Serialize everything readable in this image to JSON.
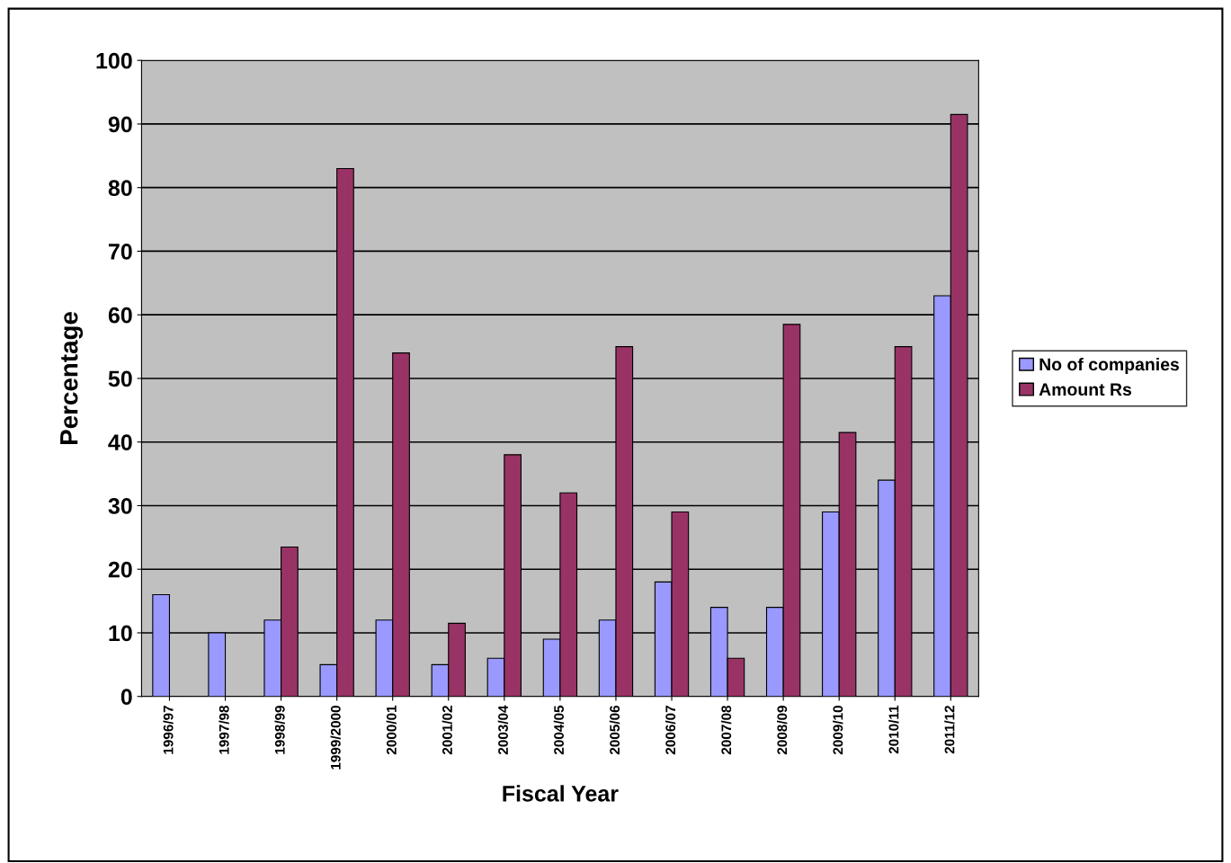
{
  "chart_data": {
    "type": "bar",
    "xlabel": "Fiscal Year",
    "ylabel": "Percentage",
    "categories": [
      "1996/97",
      "1997/98",
      "1998/99",
      "1999/2000",
      "2000/01",
      "2001/02",
      "2003/04",
      "2004/05",
      "2005/06",
      "2006/07",
      "2007/08",
      "2008/09",
      "2009/10",
      "2010/11",
      "2011/12"
    ],
    "series": [
      {
        "name": "No of companies",
        "color": "#9999ff",
        "values": [
          16,
          10,
          12,
          5,
          12,
          5,
          6,
          9,
          12,
          18,
          14,
          14,
          29,
          34,
          63
        ]
      },
      {
        "name": "Amount Rs",
        "color": "#993366",
        "values": [
          0,
          0,
          23.5,
          83,
          54,
          11.5,
          38,
          32,
          55,
          29,
          6,
          58.5,
          41.5,
          55,
          91.5
        ]
      }
    ],
    "ylim": [
      0,
      100
    ],
    "yticks": [
      0,
      10,
      20,
      30,
      40,
      50,
      60,
      70,
      80,
      90,
      100
    ],
    "grid": "y",
    "legend": "right"
  }
}
